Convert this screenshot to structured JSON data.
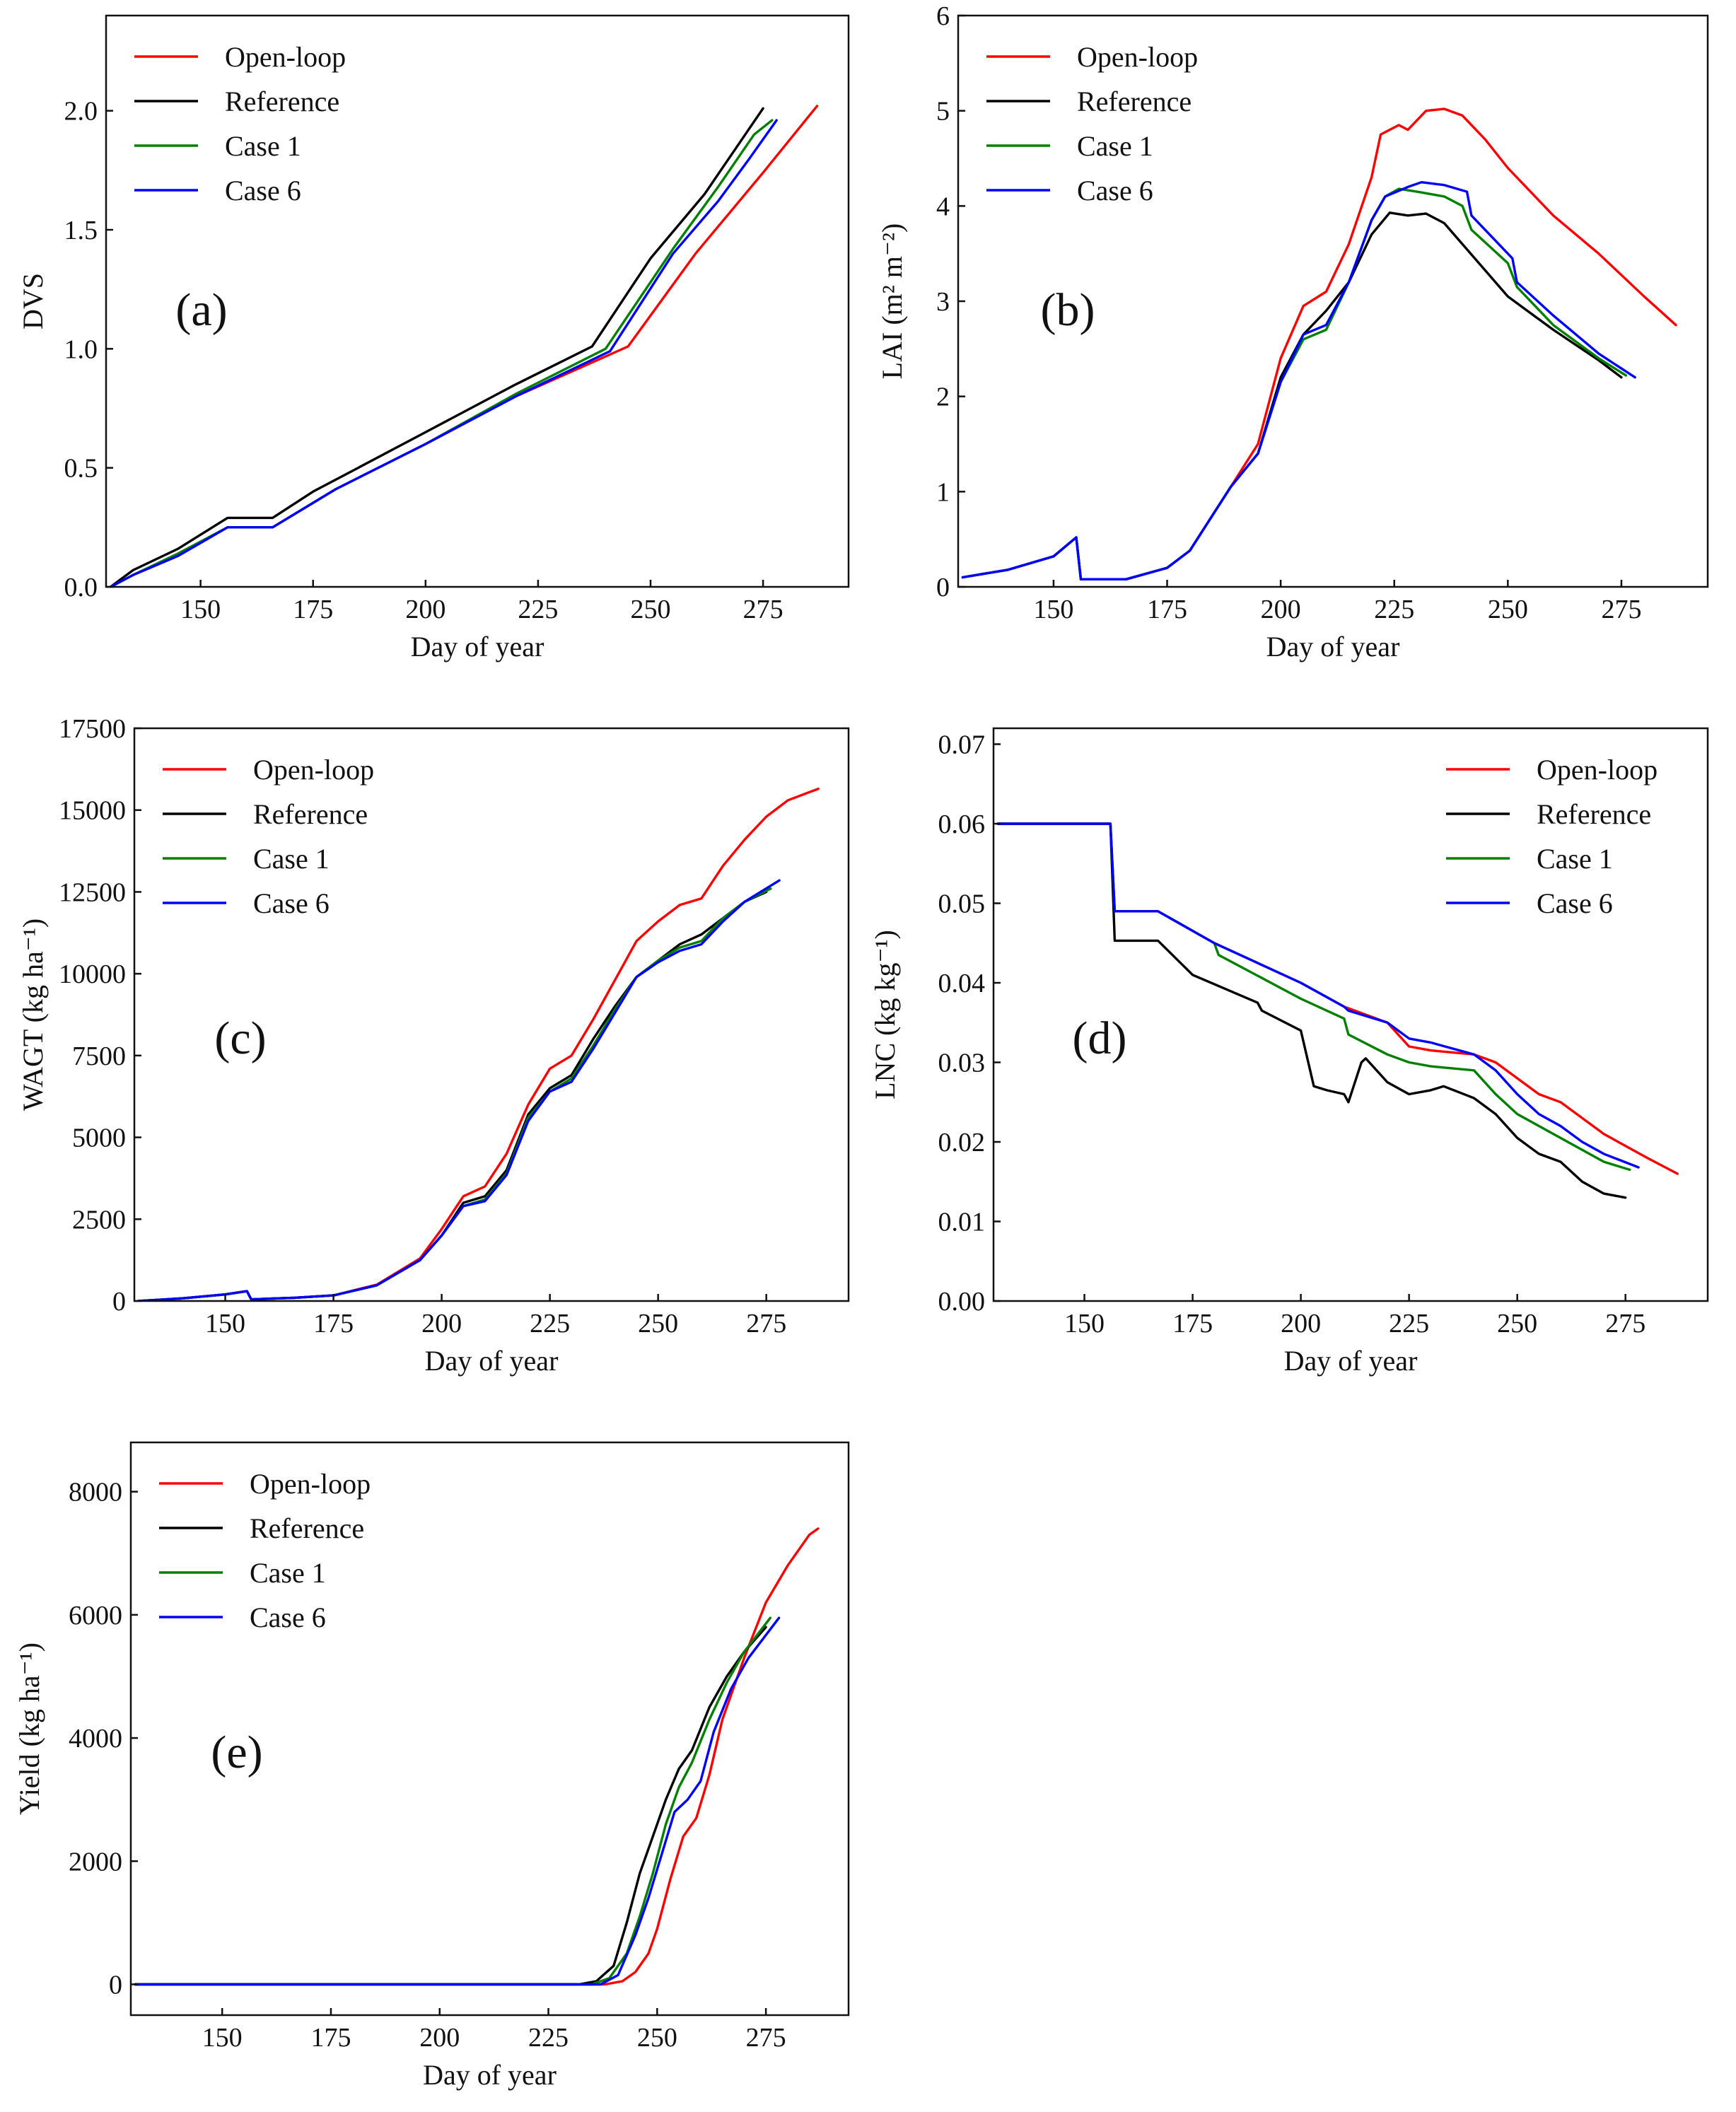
{
  "colors": {
    "open_loop": "#ff0000",
    "reference": "#000000",
    "case1": "#008000",
    "case6": "#0000ff"
  },
  "chart_data": [
    {
      "id": "a",
      "type": "line",
      "panel_label": "(a)",
      "xlabel": "Day of year",
      "ylabel": "DVS",
      "xlim": [
        129,
        294
      ],
      "ylim": [
        0,
        2.4
      ],
      "xticks": [
        150,
        175,
        200,
        225,
        250,
        275
      ],
      "yticks": [
        0.0,
        0.5,
        1.0,
        1.5,
        2.0
      ],
      "ytick_labels": [
        "0.0",
        "0.5",
        "1.0",
        "1.5",
        "2.0"
      ],
      "legend_position": "top-left",
      "series": [
        {
          "name": "Open-loop",
          "color": "#ff0000",
          "x": [
            130,
            135,
            145,
            156,
            166,
            180,
            200,
            220,
            245,
            260,
            275,
            287
          ],
          "y": [
            0,
            0.05,
            0.13,
            0.25,
            0.25,
            0.41,
            0.6,
            0.8,
            1.01,
            1.4,
            1.74,
            2.02
          ]
        },
        {
          "name": "Reference",
          "color": "#000000",
          "x": [
            130,
            135,
            145,
            156,
            166,
            175,
            185,
            200,
            220,
            237,
            250,
            262,
            275
          ],
          "y": [
            0,
            0.07,
            0.16,
            0.29,
            0.29,
            0.4,
            0.5,
            0.65,
            0.85,
            1.01,
            1.38,
            1.65,
            2.01
          ]
        },
        {
          "name": "Case 1",
          "color": "#008000",
          "x": [
            130,
            135,
            145,
            156,
            166,
            180,
            200,
            220,
            240,
            255,
            265,
            273,
            277
          ],
          "y": [
            0,
            0.05,
            0.14,
            0.25,
            0.25,
            0.41,
            0.6,
            0.81,
            1.0,
            1.42,
            1.68,
            1.9,
            1.96
          ]
        },
        {
          "name": "Case 6",
          "color": "#0000ff",
          "x": [
            130,
            135,
            145,
            156,
            166,
            180,
            200,
            220,
            241,
            255,
            265,
            272,
            278
          ],
          "y": [
            0,
            0.05,
            0.13,
            0.25,
            0.25,
            0.41,
            0.6,
            0.8,
            0.99,
            1.4,
            1.62,
            1.8,
            1.96
          ]
        }
      ]
    },
    {
      "id": "b",
      "type": "line",
      "panel_label": "(b)",
      "xlabel": "Day of year",
      "ylabel": "LAI (m² m⁻²)",
      "xlim": [
        129,
        294
      ],
      "ylim": [
        0,
        6
      ],
      "xticks": [
        150,
        175,
        200,
        225,
        250,
        275
      ],
      "yticks": [
        0,
        1,
        2,
        3,
        4,
        5,
        6
      ],
      "ytick_labels": [
        "0",
        "1",
        "2",
        "3",
        "4",
        "5",
        "6"
      ],
      "legend_position": "top-left",
      "series": [
        {
          "name": "Open-loop",
          "color": "#ff0000",
          "x": [
            130,
            140,
            150,
            155,
            156,
            166,
            175,
            180,
            189,
            195,
            200,
            205,
            210,
            215,
            220,
            222,
            226,
            228,
            232,
            236,
            240,
            245,
            250,
            260,
            270,
            280,
            287
          ],
          "y": [
            0.1,
            0.18,
            0.32,
            0.52,
            0.08,
            0.08,
            0.2,
            0.38,
            1.05,
            1.5,
            2.4,
            2.95,
            3.1,
            3.6,
            4.3,
            4.75,
            4.85,
            4.8,
            5.0,
            5.02,
            4.95,
            4.7,
            4.4,
            3.9,
            3.5,
            3.05,
            2.75
          ]
        },
        {
          "name": "Reference",
          "color": "#000000",
          "x": [
            130,
            140,
            150,
            155,
            156,
            166,
            175,
            180,
            189,
            195,
            200,
            205,
            210,
            215,
            220,
            224,
            228,
            232,
            236,
            240,
            250,
            260,
            270,
            275
          ],
          "y": [
            0.1,
            0.18,
            0.32,
            0.52,
            0.08,
            0.08,
            0.2,
            0.38,
            1.05,
            1.4,
            2.2,
            2.65,
            2.9,
            3.2,
            3.7,
            3.93,
            3.9,
            3.92,
            3.82,
            3.6,
            3.05,
            2.7,
            2.38,
            2.2
          ]
        },
        {
          "name": "Case 1",
          "color": "#008000",
          "x": [
            130,
            140,
            150,
            155,
            156,
            166,
            175,
            180,
            189,
            195,
            200,
            205,
            210,
            215,
            220,
            223,
            226,
            230,
            236,
            240,
            242,
            250,
            252,
            260,
            270,
            276
          ],
          "y": [
            0.1,
            0.18,
            0.32,
            0.52,
            0.08,
            0.08,
            0.2,
            0.38,
            1.05,
            1.4,
            2.15,
            2.6,
            2.7,
            3.2,
            3.85,
            4.1,
            4.18,
            4.15,
            4.1,
            4.0,
            3.75,
            3.4,
            3.15,
            2.75,
            2.4,
            2.22
          ]
        },
        {
          "name": "Case 6",
          "color": "#0000ff",
          "x": [
            130,
            140,
            150,
            155,
            156,
            166,
            175,
            180,
            189,
            195,
            200,
            205,
            210,
            215,
            220,
            223,
            228,
            231,
            236,
            241,
            242,
            251,
            252,
            260,
            270,
            278
          ],
          "y": [
            0.1,
            0.18,
            0.32,
            0.52,
            0.08,
            0.08,
            0.2,
            0.38,
            1.05,
            1.4,
            2.15,
            2.65,
            2.75,
            3.2,
            3.85,
            4.1,
            4.2,
            4.25,
            4.22,
            4.15,
            3.9,
            3.45,
            3.2,
            2.85,
            2.45,
            2.2
          ]
        }
      ]
    },
    {
      "id": "c",
      "type": "line",
      "panel_label": "(c)",
      "xlabel": "Day of year",
      "ylabel": "WAGT (kg ha⁻¹)",
      "xlim": [
        129,
        294
      ],
      "ylim": [
        0,
        17500
      ],
      "xticks": [
        150,
        175,
        200,
        225,
        250,
        275
      ],
      "yticks": [
        0,
        2500,
        5000,
        7500,
        10000,
        12500,
        15000,
        17500
      ],
      "ytick_labels": [
        "0",
        "2500",
        "5000",
        "7500",
        "10000",
        "12500",
        "15000",
        "17500"
      ],
      "legend_position": "top-left",
      "series": [
        {
          "name": "Open-loop",
          "color": "#ff0000",
          "x": [
            130,
            140,
            150,
            155,
            156,
            166,
            175,
            185,
            195,
            200,
            205,
            210,
            215,
            220,
            225,
            230,
            235,
            240,
            245,
            250,
            255,
            260,
            265,
            270,
            275,
            280,
            287
          ],
          "y": [
            0,
            80,
            200,
            300,
            50,
            100,
            170,
            500,
            1300,
            2200,
            3200,
            3500,
            4500,
            6000,
            7100,
            7500,
            8600,
            9800,
            11000,
            11600,
            12100,
            12300,
            13300,
            14100,
            14800,
            15300,
            15650
          ]
        },
        {
          "name": "Reference",
          "color": "#000000",
          "x": [
            130,
            140,
            150,
            155,
            156,
            166,
            175,
            185,
            195,
            200,
            205,
            210,
            215,
            220,
            225,
            230,
            235,
            240,
            245,
            250,
            255,
            260,
            265,
            270,
            275
          ],
          "y": [
            0,
            80,
            200,
            300,
            50,
            100,
            170,
            480,
            1250,
            2000,
            3000,
            3200,
            4000,
            5700,
            6500,
            6900,
            8000,
            9000,
            9900,
            10400,
            10900,
            11200,
            11700,
            12200,
            12500
          ]
        },
        {
          "name": "Case 1",
          "color": "#008000",
          "x": [
            130,
            140,
            150,
            155,
            156,
            166,
            175,
            185,
            195,
            200,
            205,
            210,
            215,
            220,
            225,
            230,
            235,
            240,
            245,
            250,
            255,
            260,
            265,
            270,
            276
          ],
          "y": [
            0,
            80,
            200,
            300,
            50,
            100,
            170,
            480,
            1250,
            2000,
            2900,
            3100,
            3900,
            5600,
            6400,
            6800,
            7800,
            8900,
            9900,
            10400,
            10800,
            11000,
            11700,
            12200,
            12600
          ]
        },
        {
          "name": "Case 6",
          "color": "#0000ff",
          "x": [
            130,
            140,
            150,
            155,
            156,
            166,
            175,
            185,
            195,
            200,
            205,
            210,
            215,
            220,
            225,
            230,
            235,
            240,
            245,
            250,
            255,
            260,
            265,
            270,
            278
          ],
          "y": [
            0,
            80,
            200,
            300,
            50,
            100,
            170,
            480,
            1250,
            2000,
            2900,
            3050,
            3850,
            5500,
            6400,
            6700,
            7700,
            8800,
            9900,
            10350,
            10700,
            10900,
            11600,
            12200,
            12850
          ]
        }
      ]
    },
    {
      "id": "d",
      "type": "line",
      "panel_label": "(d)",
      "xlabel": "Day of year",
      "ylabel": "LNC (kg kg⁻¹)",
      "xlim": [
        129,
        294
      ],
      "ylim": [
        0,
        0.072
      ],
      "xticks": [
        150,
        175,
        200,
        225,
        250,
        275
      ],
      "yticks": [
        0.0,
        0.01,
        0.02,
        0.03,
        0.04,
        0.05,
        0.06,
        0.07
      ],
      "ytick_labels": [
        "0.00",
        "0.01",
        "0.02",
        "0.03",
        "0.04",
        "0.05",
        "0.06",
        "0.07"
      ],
      "legend_position": "top-right",
      "series": [
        {
          "name": "Open-loop",
          "color": "#ff0000",
          "x": [
            130,
            156,
            157,
            167,
            180,
            200,
            210,
            220,
            225,
            230,
            240,
            245,
            250,
            255,
            260,
            270,
            280,
            287
          ],
          "y": [
            0.06,
            0.06,
            0.049,
            0.049,
            0.045,
            0.04,
            0.037,
            0.035,
            0.032,
            0.0315,
            0.031,
            0.03,
            0.028,
            0.026,
            0.025,
            0.021,
            0.018,
            0.016
          ]
        },
        {
          "name": "Reference",
          "color": "#000000",
          "x": [
            130,
            156,
            157,
            167,
            175,
            190,
            191,
            200,
            203,
            206,
            210,
            211,
            214,
            215,
            220,
            225,
            230,
            233,
            240,
            245,
            250,
            255,
            260,
            265,
            270,
            275
          ],
          "y": [
            0.06,
            0.06,
            0.0453,
            0.0453,
            0.041,
            0.0375,
            0.0365,
            0.034,
            0.027,
            0.0265,
            0.026,
            0.025,
            0.03,
            0.0305,
            0.0275,
            0.026,
            0.0265,
            0.027,
            0.0255,
            0.0235,
            0.0205,
            0.0185,
            0.0175,
            0.015,
            0.0135,
            0.013
          ]
        },
        {
          "name": "Case 1",
          "color": "#008000",
          "x": [
            130,
            156,
            157,
            167,
            180,
            181,
            200,
            210,
            211,
            220,
            225,
            230,
            240,
            245,
            250,
            255,
            260,
            265,
            270,
            276
          ],
          "y": [
            0.06,
            0.06,
            0.049,
            0.049,
            0.045,
            0.0435,
            0.038,
            0.0355,
            0.0335,
            0.031,
            0.03,
            0.0295,
            0.029,
            0.026,
            0.0235,
            0.022,
            0.0205,
            0.019,
            0.0175,
            0.0165
          ]
        },
        {
          "name": "Case 6",
          "color": "#0000ff",
          "x": [
            130,
            156,
            157,
            167,
            180,
            200,
            210,
            211,
            220,
            225,
            230,
            240,
            245,
            250,
            255,
            260,
            265,
            270,
            278
          ],
          "y": [
            0.06,
            0.06,
            0.049,
            0.049,
            0.045,
            0.04,
            0.037,
            0.0365,
            0.035,
            0.033,
            0.0325,
            0.031,
            0.029,
            0.026,
            0.0235,
            0.022,
            0.02,
            0.0185,
            0.0168
          ]
        }
      ]
    },
    {
      "id": "e",
      "type": "line",
      "panel_label": "(e)",
      "xlabel": "Day of year",
      "ylabel": "Yield (kg ha⁻¹)",
      "xlim": [
        129,
        294
      ],
      "ylim": [
        -500,
        8800
      ],
      "xticks": [
        150,
        175,
        200,
        225,
        250,
        275
      ],
      "yticks": [
        0,
        2000,
        4000,
        6000,
        8000
      ],
      "ytick_labels": [
        "0",
        "2000",
        "4000",
        "6000",
        "8000"
      ],
      "legend_position": "top-left",
      "series": [
        {
          "name": "Open-loop",
          "color": "#ff0000",
          "x": [
            130,
            238,
            242,
            245,
            248,
            250,
            253,
            256,
            259,
            262,
            265,
            270,
            275,
            280,
            285,
            287
          ],
          "y": [
            0,
            0,
            50,
            200,
            500,
            900,
            1700,
            2400,
            2700,
            3400,
            4300,
            5300,
            6200,
            6800,
            7300,
            7400
          ]
        },
        {
          "name": "Reference",
          "color": "#000000",
          "x": [
            130,
            232,
            236,
            240,
            243,
            246,
            249,
            252,
            255,
            258,
            262,
            266,
            270,
            275
          ],
          "y": [
            0,
            0,
            50,
            300,
            1000,
            1800,
            2400,
            3000,
            3500,
            3800,
            4500,
            5000,
            5400,
            5800
          ]
        },
        {
          "name": "Case 1",
          "color": "#008000",
          "x": [
            130,
            235,
            239,
            243,
            246,
            249,
            252,
            255,
            258,
            262,
            266,
            270,
            276
          ],
          "y": [
            0,
            0,
            100,
            500,
            1100,
            1800,
            2600,
            3200,
            3600,
            4300,
            4900,
            5400,
            5950
          ]
        },
        {
          "name": "Case 6",
          "color": "#0000ff",
          "x": [
            130,
            237,
            241,
            245,
            248,
            251,
            254,
            257,
            260,
            263,
            267,
            271,
            278
          ],
          "y": [
            0,
            0,
            150,
            800,
            1400,
            2100,
            2800,
            3000,
            3300,
            4100,
            4800,
            5300,
            5950
          ]
        }
      ]
    }
  ]
}
